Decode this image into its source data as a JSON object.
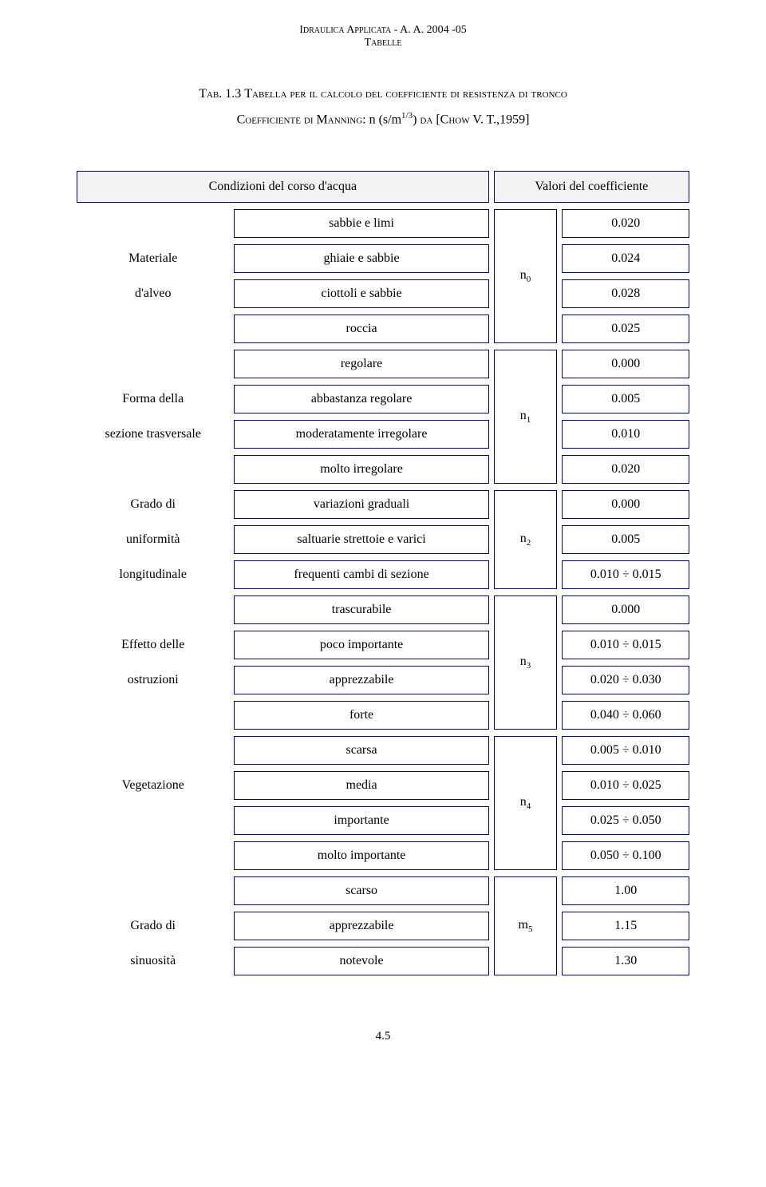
{
  "header": {
    "line1": "Idraulica Applicata - A. A. 2004 -05",
    "line2": "Tabelle"
  },
  "title": {
    "tab": "Tab. 1.3",
    "main": "Tabella per il calcolo del coefficiente di resistenza di tronco",
    "coef_prefix": "Coefficiente di ",
    "manning": "Manning",
    "formula": ": n (s/m",
    "formula_exp": "1/3",
    "formula_end": ") ",
    "da": "da",
    "ref": " [Chow V. T.,1959]"
  },
  "table_header": {
    "left": "Condizioni del corso d'acqua",
    "right": "Valori del coefficiente"
  },
  "border_color": "#000080",
  "groups": [
    {
      "label_lines": [
        "",
        "Materiale",
        "d'alveo",
        ""
      ],
      "symbol": "n",
      "sub": "0",
      "rows": [
        {
          "desc": "sabbie e limi",
          "val": "0.020"
        },
        {
          "desc": "ghiaie e sabbie",
          "val": "0.024"
        },
        {
          "desc": "ciottoli e sabbie",
          "val": "0.028"
        },
        {
          "desc": "roccia",
          "val": "0.025"
        }
      ]
    },
    {
      "label_lines": [
        "",
        "Forma della",
        "sezione trasversale",
        ""
      ],
      "symbol": "n",
      "sub": "1",
      "rows": [
        {
          "desc": "regolare",
          "val": "0.000"
        },
        {
          "desc": "abbastanza regolare",
          "val": "0.005"
        },
        {
          "desc": "moderatamente irregolare",
          "val": "0.010"
        },
        {
          "desc": "molto irregolare",
          "val": "0.020"
        }
      ]
    },
    {
      "label_lines": [
        "Grado di",
        "uniformità",
        "longitudinale"
      ],
      "symbol": "n",
      "sub": "2",
      "rows": [
        {
          "desc": "variazioni graduali",
          "val": "0.000"
        },
        {
          "desc": "saltuarie strettoie e varici",
          "val": "0.005"
        },
        {
          "desc": "frequenti cambi di sezione",
          "val": "0.010 ÷ 0.015"
        }
      ]
    },
    {
      "label_lines": [
        "",
        "Effetto delle",
        "ostruzioni",
        ""
      ],
      "symbol": "n",
      "sub": "3",
      "rows": [
        {
          "desc": "trascurabile",
          "val": "0.000"
        },
        {
          "desc": "poco importante",
          "val": "0.010 ÷ 0.015"
        },
        {
          "desc": "apprezzabile",
          "val": "0.020 ÷ 0.030"
        },
        {
          "desc": "forte",
          "val": "0.040 ÷ 0.060"
        }
      ]
    },
    {
      "label_lines": [
        "",
        "Vegetazione",
        "",
        ""
      ],
      "symbol": "n",
      "sub": "4",
      "rows": [
        {
          "desc": "scarsa",
          "val": "0.005 ÷ 0.010"
        },
        {
          "desc": "media",
          "val": "0.010 ÷ 0.025"
        },
        {
          "desc": "importante",
          "val": "0.025 ÷ 0.050"
        },
        {
          "desc": "molto importante",
          "val": "0.050 ÷ 0.100"
        }
      ]
    },
    {
      "label_lines": [
        "",
        "Grado di",
        "sinuosità"
      ],
      "symbol": "m",
      "sub": "5",
      "rows": [
        {
          "desc": "scarso",
          "val": "1.00"
        },
        {
          "desc": "apprezzabile",
          "val": "1.15"
        },
        {
          "desc": "notevole",
          "val": "1.30"
        }
      ]
    }
  ],
  "footer": "4.5"
}
